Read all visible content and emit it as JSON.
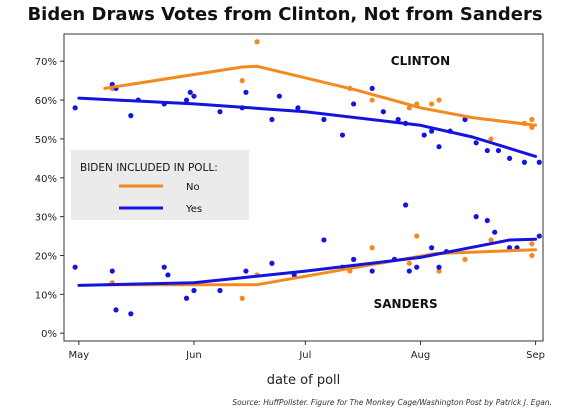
{
  "title": "Biden Draws Votes from Clinton, Not from Sanders",
  "source_note": "Source: HuffPollster. Figure for The Monkey Cage/Washington Post by Patrick J. Egan.",
  "colors": {
    "no": "#f48a1e",
    "yes": "#1414e0",
    "legend_bg": "#ebebeb",
    "plot_border": "#333333"
  },
  "chart_data": {
    "type": "scatter",
    "title": "Biden Draws Votes from Clinton, Not from Sanders",
    "xlabel": "date of poll",
    "ylabel": "",
    "xlim": [
      "2015-04-27",
      "2015-09-03"
    ],
    "ylim": [
      -0.02,
      0.77
    ],
    "x_ticks": [
      {
        "date": "2015-05-01",
        "label": "May"
      },
      {
        "date": "2015-06-01",
        "label": "Jun"
      },
      {
        "date": "2015-07-01",
        "label": "Jul"
      },
      {
        "date": "2015-08-01",
        "label": "Aug"
      },
      {
        "date": "2015-09-01",
        "label": "Sep"
      }
    ],
    "y_ticks": [
      {
        "value": 0.0,
        "label": "0%"
      },
      {
        "value": 0.1,
        "label": "10%"
      },
      {
        "value": 0.2,
        "label": "20%"
      },
      {
        "value": 0.3,
        "label": "30%"
      },
      {
        "value": 0.4,
        "label": "40%"
      },
      {
        "value": 0.5,
        "label": "50%"
      },
      {
        "value": 0.6,
        "label": "60%"
      },
      {
        "value": 0.7,
        "label": "70%"
      }
    ],
    "grid": false,
    "legend": {
      "title": "BIDEN INCLUDED IN POLL:",
      "placement": "middle-left",
      "entries": [
        {
          "label": "No",
          "series": "no"
        },
        {
          "label": "Yes",
          "series": "yes"
        }
      ]
    },
    "annotations": [
      {
        "text": "CLINTON",
        "x": "2015-08-01",
        "y": 0.69
      },
      {
        "text": "SANDERS",
        "x": "2015-07-28",
        "y": 0.065
      }
    ],
    "series": [
      {
        "candidate": "Clinton",
        "group": "no",
        "points": [
          {
            "x": "2015-05-10",
            "y": 0.63
          },
          {
            "x": "2015-06-14",
            "y": 0.65
          },
          {
            "x": "2015-06-18",
            "y": 0.75
          },
          {
            "x": "2015-07-13",
            "y": 0.63
          },
          {
            "x": "2015-07-19",
            "y": 0.6
          },
          {
            "x": "2015-07-29",
            "y": 0.58
          },
          {
            "x": "2015-07-31",
            "y": 0.59
          },
          {
            "x": "2015-08-04",
            "y": 0.59
          },
          {
            "x": "2015-08-06",
            "y": 0.6
          },
          {
            "x": "2015-08-20",
            "y": 0.5
          },
          {
            "x": "2015-08-29",
            "y": 0.54
          },
          {
            "x": "2015-08-31",
            "y": 0.55
          },
          {
            "x": "2015-08-31",
            "y": 0.53
          }
        ],
        "trend": [
          {
            "x": "2015-05-08",
            "y": 0.63
          },
          {
            "x": "2015-06-14",
            "y": 0.685
          },
          {
            "x": "2015-06-18",
            "y": 0.687
          },
          {
            "x": "2015-07-15",
            "y": 0.625
          },
          {
            "x": "2015-08-01",
            "y": 0.58
          },
          {
            "x": "2015-08-15",
            "y": 0.555
          },
          {
            "x": "2015-09-01",
            "y": 0.535
          }
        ]
      },
      {
        "candidate": "Clinton",
        "group": "yes",
        "points": [
          {
            "x": "2015-04-30",
            "y": 0.58
          },
          {
            "x": "2015-05-10",
            "y": 0.64
          },
          {
            "x": "2015-05-11",
            "y": 0.63
          },
          {
            "x": "2015-05-15",
            "y": 0.56
          },
          {
            "x": "2015-05-17",
            "y": 0.6
          },
          {
            "x": "2015-05-24",
            "y": 0.59
          },
          {
            "x": "2015-05-30",
            "y": 0.6
          },
          {
            "x": "2015-05-31",
            "y": 0.62
          },
          {
            "x": "2015-06-01",
            "y": 0.61
          },
          {
            "x": "2015-06-08",
            "y": 0.57
          },
          {
            "x": "2015-06-14",
            "y": 0.58
          },
          {
            "x": "2015-06-15",
            "y": 0.62
          },
          {
            "x": "2015-06-22",
            "y": 0.55
          },
          {
            "x": "2015-06-24",
            "y": 0.61
          },
          {
            "x": "2015-06-29",
            "y": 0.58
          },
          {
            "x": "2015-07-06",
            "y": 0.55
          },
          {
            "x": "2015-07-11",
            "y": 0.51
          },
          {
            "x": "2015-07-14",
            "y": 0.59
          },
          {
            "x": "2015-07-19",
            "y": 0.63
          },
          {
            "x": "2015-07-22",
            "y": 0.57
          },
          {
            "x": "2015-07-26",
            "y": 0.55
          },
          {
            "x": "2015-07-28",
            "y": 0.54
          },
          {
            "x": "2015-08-02",
            "y": 0.51
          },
          {
            "x": "2015-08-04",
            "y": 0.52
          },
          {
            "x": "2015-08-06",
            "y": 0.48
          },
          {
            "x": "2015-08-09",
            "y": 0.52
          },
          {
            "x": "2015-08-13",
            "y": 0.55
          },
          {
            "x": "2015-08-16",
            "y": 0.49
          },
          {
            "x": "2015-08-19",
            "y": 0.47
          },
          {
            "x": "2015-08-22",
            "y": 0.47
          },
          {
            "x": "2015-08-25",
            "y": 0.45
          },
          {
            "x": "2015-08-29",
            "y": 0.44
          },
          {
            "x": "2015-09-02",
            "y": 0.44
          }
        ],
        "trend": [
          {
            "x": "2015-05-01",
            "y": 0.605
          },
          {
            "x": "2015-06-01",
            "y": 0.59
          },
          {
            "x": "2015-07-01",
            "y": 0.57
          },
          {
            "x": "2015-08-01",
            "y": 0.535
          },
          {
            "x": "2015-08-15",
            "y": 0.505
          },
          {
            "x": "2015-09-01",
            "y": 0.455
          }
        ]
      },
      {
        "candidate": "Sanders",
        "group": "no",
        "points": [
          {
            "x": "2015-05-10",
            "y": 0.13
          },
          {
            "x": "2015-06-14",
            "y": 0.09
          },
          {
            "x": "2015-06-18",
            "y": 0.15
          },
          {
            "x": "2015-07-13",
            "y": 0.16
          },
          {
            "x": "2015-07-19",
            "y": 0.22
          },
          {
            "x": "2015-07-29",
            "y": 0.18
          },
          {
            "x": "2015-07-31",
            "y": 0.25
          },
          {
            "x": "2015-08-06",
            "y": 0.16
          },
          {
            "x": "2015-08-13",
            "y": 0.19
          },
          {
            "x": "2015-08-20",
            "y": 0.24
          },
          {
            "x": "2015-08-31",
            "y": 0.23
          },
          {
            "x": "2015-08-31",
            "y": 0.2
          }
        ],
        "trend": [
          {
            "x": "2015-05-08",
            "y": 0.125
          },
          {
            "x": "2015-06-18",
            "y": 0.125
          },
          {
            "x": "2015-07-15",
            "y": 0.17
          },
          {
            "x": "2015-08-05",
            "y": 0.205
          },
          {
            "x": "2015-09-01",
            "y": 0.215
          }
        ]
      },
      {
        "candidate": "Sanders",
        "group": "yes",
        "points": [
          {
            "x": "2015-04-30",
            "y": 0.17
          },
          {
            "x": "2015-05-10",
            "y": 0.16
          },
          {
            "x": "2015-05-11",
            "y": 0.06
          },
          {
            "x": "2015-05-15",
            "y": 0.05
          },
          {
            "x": "2015-05-24",
            "y": 0.17
          },
          {
            "x": "2015-05-25",
            "y": 0.15
          },
          {
            "x": "2015-05-30",
            "y": 0.09
          },
          {
            "x": "2015-06-01",
            "y": 0.11
          },
          {
            "x": "2015-06-08",
            "y": 0.11
          },
          {
            "x": "2015-06-15",
            "y": 0.16
          },
          {
            "x": "2015-06-22",
            "y": 0.18
          },
          {
            "x": "2015-06-28",
            "y": 0.15
          },
          {
            "x": "2015-07-06",
            "y": 0.24
          },
          {
            "x": "2015-07-11",
            "y": 0.17
          },
          {
            "x": "2015-07-14",
            "y": 0.19
          },
          {
            "x": "2015-07-19",
            "y": 0.16
          },
          {
            "x": "2015-07-25",
            "y": 0.19
          },
          {
            "x": "2015-07-28",
            "y": 0.33
          },
          {
            "x": "2015-07-29",
            "y": 0.16
          },
          {
            "x": "2015-07-31",
            "y": 0.17
          },
          {
            "x": "2015-08-04",
            "y": 0.22
          },
          {
            "x": "2015-08-06",
            "y": 0.17
          },
          {
            "x": "2015-08-08",
            "y": 0.21
          },
          {
            "x": "2015-08-16",
            "y": 0.3
          },
          {
            "x": "2015-08-19",
            "y": 0.29
          },
          {
            "x": "2015-08-21",
            "y": 0.26
          },
          {
            "x": "2015-08-25",
            "y": 0.22
          },
          {
            "x": "2015-08-27",
            "y": 0.22
          },
          {
            "x": "2015-09-02",
            "y": 0.25
          }
        ],
        "trend": [
          {
            "x": "2015-05-01",
            "y": 0.123
          },
          {
            "x": "2015-06-01",
            "y": 0.13
          },
          {
            "x": "2015-07-01",
            "y": 0.16
          },
          {
            "x": "2015-08-01",
            "y": 0.195
          },
          {
            "x": "2015-08-25",
            "y": 0.24
          },
          {
            "x": "2015-09-01",
            "y": 0.242
          }
        ]
      }
    ]
  }
}
